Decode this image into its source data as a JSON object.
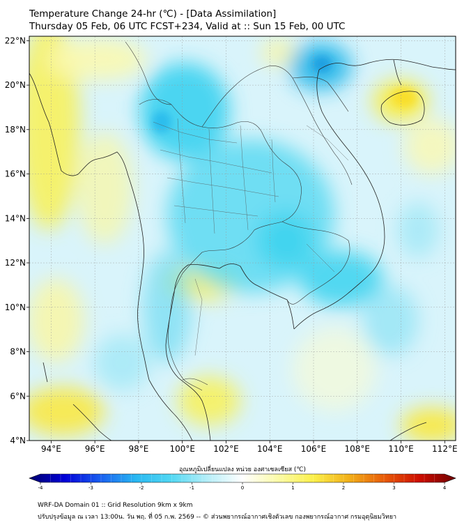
{
  "title": {
    "line1": "Temperature Change 24-hr (℃) - [Data Assimilation]",
    "line2": "Thursday 05 Feb, 06 UTC FCST+234, Valid at :: Sun 15 Feb, 00 UTC"
  },
  "map": {
    "lat_range": [
      4,
      22.2
    ],
    "lon_range": [
      93,
      112.5
    ],
    "lat_ticks": [
      {
        "value": 22,
        "label": "22°N"
      },
      {
        "value": 20,
        "label": "20°N"
      },
      {
        "value": 18,
        "label": "18°N"
      },
      {
        "value": 16,
        "label": "16°N"
      },
      {
        "value": 14,
        "label": "14°N"
      },
      {
        "value": 12,
        "label": "12°N"
      },
      {
        "value": 10,
        "label": "10°N"
      },
      {
        "value": 8,
        "label": "8°N"
      },
      {
        "value": 6,
        "label": "6°N"
      },
      {
        "value": 4,
        "label": "4°N"
      }
    ],
    "lon_ticks": [
      {
        "value": 94,
        "label": "94°E"
      },
      {
        "value": 96,
        "label": "96°E"
      },
      {
        "value": 98,
        "label": "98°E"
      },
      {
        "value": 100,
        "label": "100°E"
      },
      {
        "value": 102,
        "label": "102°E"
      },
      {
        "value": 104,
        "label": "104°E"
      },
      {
        "value": 106,
        "label": "106°E"
      },
      {
        "value": 108,
        "label": "108°E"
      },
      {
        "value": 110,
        "label": "110°E"
      },
      {
        "value": 112,
        "label": "112°E"
      }
    ],
    "cold_color": "#3ad2ef",
    "warm_color": "#fbf04a"
  },
  "colorbar": {
    "title": "อุณหภูมิเปลี่ยนแปลง หน่วย องศาเซลเซียส (℃)",
    "min": -4,
    "max": 4,
    "ticks": [
      -4,
      -3,
      -2,
      -1,
      0,
      1,
      2,
      3,
      4
    ],
    "stops": [
      "#00006e",
      "#0000d8",
      "#1a5ff0",
      "#29b8f2",
      "#52d8f3",
      "#b5eef8",
      "#ffffff",
      "#fbfba8",
      "#fbf04a",
      "#f2b019",
      "#e85a08",
      "#cc0c00",
      "#6e0000"
    ]
  },
  "footer": {
    "line1": "WRF-DA Domain 01 :: Grid Resolution 9km x 9km",
    "line2": "ปรับปรุงข้อมูล ณ เวลา 13:00น. วัน พฤ. ที่ 05 ก.พ. 2569 -- © ส่วนพยากรณ์อากาศเชิงตัวเลข กองพยากรณ์อากาศ กรมอุตุนิยมวิทยา"
  }
}
